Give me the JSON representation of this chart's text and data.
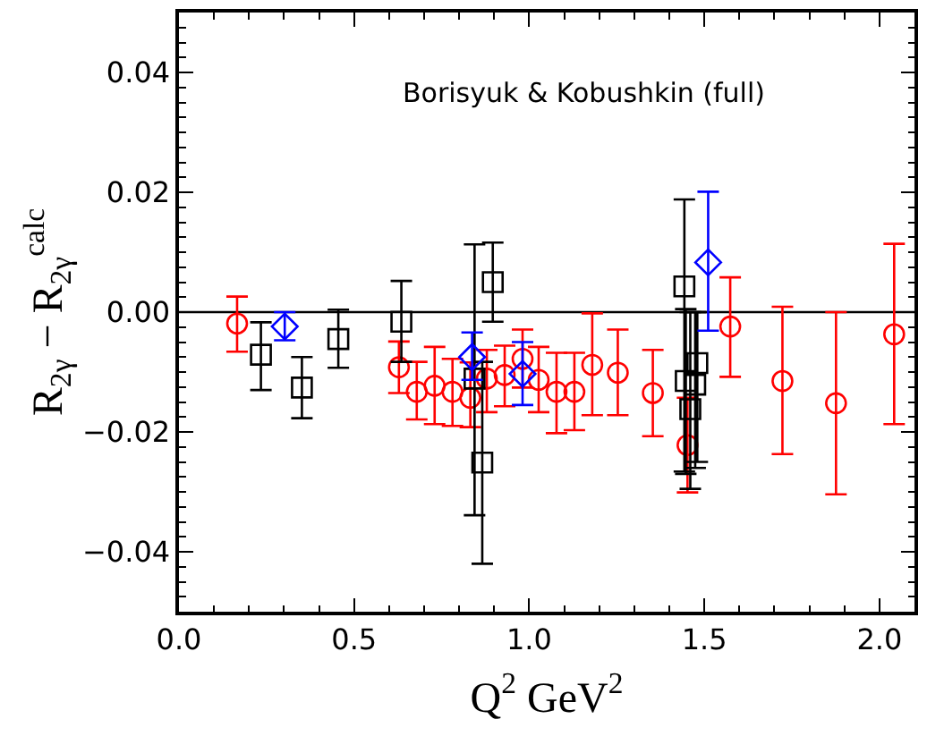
{
  "chart_data": {
    "type": "scatter",
    "xlabel": "Q$^{2}$ GeV$^{2}$",
    "ylabel": "R$_{2γ}$ − R$_{2γ}$$^{calc}$",
    "annotations": [
      "Borisyuk & Kobushkin (full)"
    ],
    "xlim": [
      0,
      2.1
    ],
    "ylim": [
      -0.05,
      0.05
    ],
    "xticks": [
      {
        "value": 0,
        "label": "0.0"
      },
      {
        "value": 0.5,
        "label": "0.5"
      },
      {
        "value": 1,
        "label": "1.0"
      },
      {
        "value": 1.5,
        "label": "1.5"
      },
      {
        "value": 2,
        "label": "2.0"
      }
    ],
    "yticks": [
      {
        "value": -0.04,
        "label": "−0.04"
      },
      {
        "value": -0.02,
        "label": "−0.02"
      },
      {
        "value": 0,
        "label": "0.00"
      },
      {
        "value": 0.02,
        "label": "0.02"
      },
      {
        "value": 0.04,
        "label": "0.04"
      }
    ],
    "grid": false,
    "legend": false,
    "ref_lines": [
      {
        "axis": "y",
        "value": 0,
        "color": "#000000"
      }
    ],
    "series": [
      {
        "color": "#ff0000",
        "marker": "circle",
        "x": [
          0.166,
          0.628,
          0.679,
          0.73,
          0.781,
          0.832,
          0.879,
          0.93,
          0.981,
          1.027,
          1.078,
          1.129,
          1.18,
          1.253,
          1.353,
          1.452,
          1.574,
          1.723,
          1.876,
          2.042
        ],
        "values": [
          -0.0019,
          -0.0092,
          -0.0133,
          -0.0123,
          -0.0133,
          -0.0143,
          -0.0111,
          -0.0105,
          -0.0078,
          -0.0113,
          -0.0133,
          -0.0133,
          -0.0088,
          -0.0101,
          -0.0135,
          -0.0222,
          -0.0024,
          -0.0115,
          -0.0152,
          -0.0037
        ],
        "errors": [
          [
            -0.0066,
            0.0026
          ],
          [
            -0.0135,
            -0.0049
          ],
          [
            -0.0179,
            -0.0083
          ],
          [
            -0.0187,
            -0.0058
          ],
          [
            -0.019,
            -0.0078
          ],
          [
            -0.0192,
            -0.0084
          ],
          [
            -0.0167,
            -0.0063
          ],
          [
            -0.0157,
            -0.0056
          ],
          [
            -0.0126,
            -0.0029
          ],
          [
            -0.0167,
            -0.0058
          ],
          [
            -0.0202,
            -0.0068
          ],
          [
            -0.0197,
            -0.0068
          ],
          [
            -0.0172,
            -0.0002
          ],
          [
            -0.0172,
            -0.0029
          ],
          [
            -0.0207,
            -0.0063
          ],
          [
            -0.0301,
            -0.0143
          ],
          [
            -0.0108,
            0.0058
          ],
          [
            -0.0237,
            0.0009
          ],
          [
            -0.0304,
            0.0
          ],
          [
            -0.0187,
            0.0114
          ]
        ]
      },
      {
        "color": "#000000",
        "marker": "square",
        "x": [
          0.234,
          0.351,
          0.455,
          0.635,
          0.844,
          0.866,
          0.896,
          1.443,
          1.447,
          1.46,
          1.474,
          1.48
        ],
        "values": [
          -0.0071,
          -0.0126,
          -0.0045,
          -0.0016,
          -0.0111,
          -0.0251,
          0.005,
          0.0043,
          -0.0115,
          -0.0162,
          -0.0121,
          -0.0085
        ],
        "errors": [
          [
            -0.013,
            -0.0017
          ],
          [
            -0.0177,
            -0.0075
          ],
          [
            -0.0093,
            0.0004
          ],
          [
            -0.0083,
            0.0052
          ],
          [
            -0.0339,
            0.0113
          ],
          [
            -0.042,
            -0.0083
          ],
          [
            -0.0016,
            0.0116
          ],
          [
            -0.0266,
            0.0188
          ],
          [
            -0.027,
            0.0005
          ],
          [
            -0.0295,
            0.0
          ],
          [
            -0.026,
            0.0
          ],
          [
            -0.025,
            0.0
          ]
        ]
      },
      {
        "color": "#0000ff",
        "marker": "diamond",
        "x": [
          0.302,
          0.837,
          0.981,
          1.511
        ],
        "values": [
          -0.0024,
          -0.0075,
          -0.0103,
          0.0083
        ],
        "errors": [
          [
            -0.0047,
            0.0
          ],
          [
            -0.0113,
            -0.0034
          ],
          [
            -0.0155,
            -0.005
          ],
          [
            -0.0031,
            0.0201
          ]
        ]
      }
    ]
  }
}
